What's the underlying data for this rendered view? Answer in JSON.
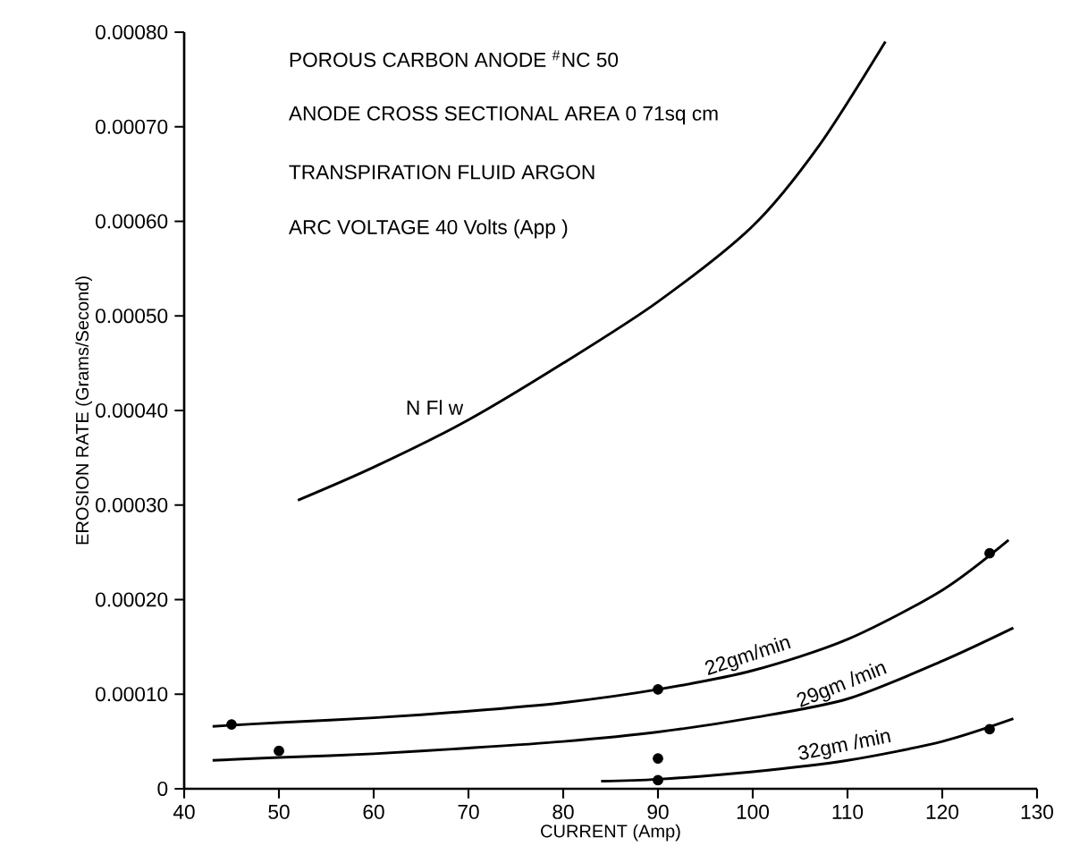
{
  "chart_data": {
    "type": "line",
    "annotations": [
      "POROUS CARBON ANODE $^{#}$NC 50",
      "ANODE CROSS SECTIONAL AREA  0 71sq cm",
      "TRANSPIRATION FLUID  ARGON",
      "ARC VOLTAGE   40 Volts (App    )"
    ],
    "xlabel": "CURRENT (Amp)",
    "ylabel": "EROSION RATE (Grams/Second)",
    "xlim": [
      40,
      130
    ],
    "xticks": [
      40,
      50,
      60,
      70,
      80,
      90,
      100,
      110,
      120,
      130
    ],
    "ylim": [
      0,
      0.0008
    ],
    "yticks": [
      0,
      {
        "value": 0.0001,
        "label": "0.00010"
      },
      {
        "value": 0.0002,
        "label": "0.00020"
      },
      {
        "value": 0.0003,
        "label": "0.00030"
      },
      {
        "value": 0.0004,
        "label": "0.00040"
      },
      {
        "value": 0.0005,
        "label": "0.00050"
      },
      {
        "value": 0.0006,
        "label": "0.00060"
      },
      {
        "value": 0.0007,
        "label": "0.00070"
      },
      {
        "value": 0.0008,
        "label": "0.00080"
      }
    ],
    "series": [
      {
        "name": "N Fl w",
        "color": "#000000",
        "x": [
          52,
          60,
          70,
          80,
          90,
          100,
          107,
          114
        ],
        "values": [
          0.000305,
          0.00034,
          0.00039,
          0.00045,
          0.000515,
          0.000595,
          0.00068,
          0.00079
        ]
      },
      {
        "name": "22gm/min",
        "color": "#000000",
        "x": [
          43,
          50,
          60,
          70,
          80,
          90,
          100,
          110,
          120,
          127
        ],
        "values": [
          6.6e-05,
          7e-05,
          7.5e-05,
          8.2e-05,
          9.1e-05,
          0.000105,
          0.000125,
          0.000158,
          0.00021,
          0.000263
        ]
      },
      {
        "name": "29gm /min",
        "color": "#000000",
        "x": [
          43,
          50,
          60,
          70,
          80,
          90,
          100,
          110,
          120,
          127.5
        ],
        "values": [
          3e-05,
          3.3e-05,
          3.7e-05,
          4.3e-05,
          5e-05,
          6e-05,
          7.5e-05,
          9.5e-05,
          0.000135,
          0.00017
        ]
      },
      {
        "name": "32gm /min",
        "color": "#000000",
        "x": [
          84,
          90,
          100,
          110,
          120,
          127.5
        ],
        "values": [
          8e-06,
          1e-05,
          1.8e-05,
          3e-05,
          5e-05,
          7.4e-05
        ]
      },
      {
        "type": "scatter",
        "color": "#000000",
        "x": [
          45,
          50,
          90,
          90,
          90,
          125,
          125
        ],
        "values": [
          6.8e-05,
          4e-05,
          0.000105,
          3.2e-05,
          9e-06,
          0.000249,
          6.3e-05
        ]
      }
    ]
  }
}
